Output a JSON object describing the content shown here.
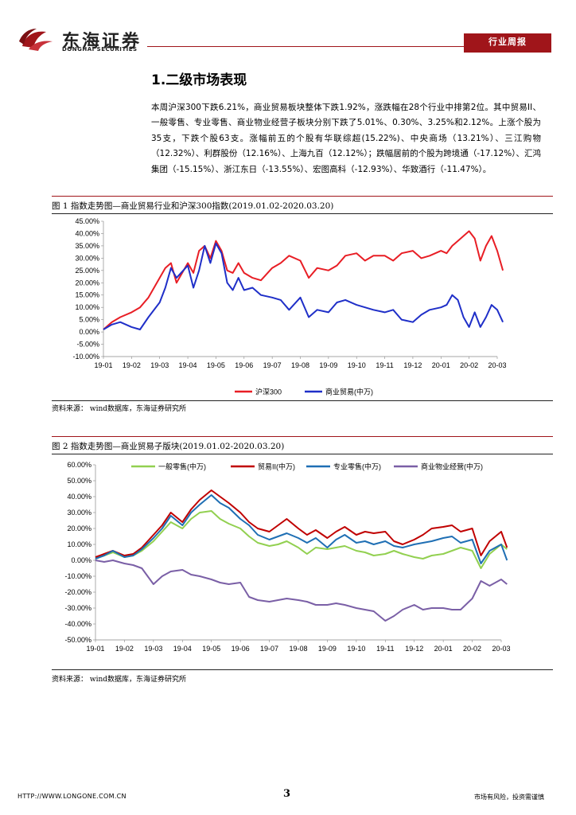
{
  "header": {
    "logo_cn": "东海证券",
    "logo_en": "DONGHAI SECURITIES",
    "tag": "行业周报"
  },
  "section_title": "1.二级市场表现",
  "paragraph": "本周沪深300下跌6.21%，商业贸易板块整体下跌1.92%，涨跌幅在28个行业中排第2位。其中贸易II、一般零售、专业零售、商业物业经营子板块分别下跌了5.01%、0.30%、3.25%和2.12%。上涨个股为35支，下跌个股63支。涨幅前五的个股有华联综超(15.22%)、中央商场（13.21%）、三江购物（12.32%）、利群股份（12.16%）、上海九百（12.12%）；跌幅居前的个股为跨境通（-17.12%）、汇鸿集团（-15.15%）、浙江东日（-13.55%）、宏图高科（-12.93%）、华致酒行（-11.47%）。",
  "fig1": {
    "title": "图 1    指数走势图—商业贸易行业和沪深300指数(2019.01.02-2020.03.20)",
    "source": "资料来源：    wind数据库，东海证券研究所"
  },
  "fig2": {
    "title": "图 2    指数走势图—商业贸易子版块(2019.01.02-2020.03.20)",
    "source": "资料来源：    wind数据库，东海证券研究所"
  },
  "footer": {
    "url": "HTTP://WWW.LONGONE.COM.CN",
    "page": "3",
    "risk": "市场有风险，投资需谨慎"
  },
  "colors": {
    "brand": "#a0151a",
    "hs300": "#e81e25",
    "trade": "#1f2fc8",
    "general_retail": "#92d050",
    "trade2": "#c00000",
    "specialty_retail": "#1f6fb4",
    "property": "#7a5fa6"
  },
  "chart_data": [
    {
      "type": "line",
      "title": "指数走势图—商业贸易行业和沪深300指数",
      "x_tick_labels": [
        "19-01",
        "19-02",
        "19-03",
        "19-04",
        "19-05",
        "19-06",
        "19-07",
        "19-08",
        "19-09",
        "19-10",
        "19-11",
        "19-12",
        "20-01",
        "20-02",
        "20-03"
      ],
      "y_tick_labels": [
        "45.00%",
        "40.00%",
        "35.00%",
        "30.00%",
        "25.00%",
        "20.00%",
        "15.00%",
        "10.00%",
        "5.00%",
        "0.00%",
        "-5.00%",
        "-10.00%"
      ],
      "ylim": [
        -10,
        45
      ],
      "x": [
        0,
        0.3,
        0.6,
        1,
        1.3,
        1.6,
        2,
        2.2,
        2.4,
        2.6,
        3,
        3.2,
        3.4,
        3.6,
        3.8,
        4,
        4.2,
        4.4,
        4.6,
        4.8,
        5,
        5.3,
        5.6,
        6,
        6.3,
        6.6,
        7,
        7.3,
        7.6,
        8,
        8.3,
        8.6,
        9,
        9.3,
        9.6,
        10,
        10.3,
        10.6,
        11,
        11.3,
        11.6,
        12,
        12.2,
        12.4,
        12.6,
        12.8,
        13,
        13.2,
        13.4,
        13.6,
        13.8,
        14,
        14.2
      ],
      "series": [
        {
          "name": "沪深300",
          "color": "#e81e25",
          "values": [
            1,
            4,
            6,
            8,
            10,
            14,
            22,
            26,
            28,
            20,
            28,
            24,
            33,
            35,
            30,
            37,
            33,
            25,
            24,
            28,
            24,
            22,
            21,
            26,
            28,
            31,
            29,
            22,
            26,
            25,
            27,
            31,
            32,
            29,
            31,
            31,
            29,
            32,
            33,
            30,
            31,
            33,
            32,
            35,
            37,
            39,
            41,
            38,
            29,
            35,
            39,
            33,
            25
          ]
        },
        {
          "name": "商业贸易(中万)",
          "color": "#1f2fc8",
          "values": [
            1,
            3,
            4,
            2,
            1,
            6,
            12,
            18,
            26,
            22,
            27,
            18,
            25,
            35,
            28,
            36,
            32,
            20,
            17,
            22,
            17,
            18,
            15,
            14,
            13,
            9,
            14,
            6,
            9,
            8,
            12,
            13,
            11,
            10,
            9,
            8,
            9,
            5,
            4,
            7,
            9,
            10,
            11,
            15,
            13,
            6,
            2,
            8,
            2,
            6,
            11,
            9,
            4
          ]
        }
      ]
    },
    {
      "type": "line",
      "title": "指数走势图—商业贸易子版块",
      "x_tick_labels": [
        "19-01",
        "19-02",
        "19-03",
        "19-04",
        "19-05",
        "19-06",
        "19-07",
        "19-08",
        "19-09",
        "19-10",
        "19-11",
        "19-12",
        "20-01",
        "20-02",
        "20-03"
      ],
      "y_tick_labels": [
        "60.00%",
        "50.00%",
        "40.00%",
        "30.00%",
        "20.00%",
        "10.00%",
        "0.00%",
        "-10.00%",
        "-20.00%",
        "-30.00%",
        "-40.00%",
        "-50.00%"
      ],
      "ylim": [
        -50,
        60
      ],
      "x": [
        0,
        0.3,
        0.6,
        1,
        1.3,
        1.6,
        2,
        2.3,
        2.6,
        3,
        3.3,
        3.6,
        4,
        4.3,
        4.6,
        5,
        5.3,
        5.6,
        6,
        6.3,
        6.6,
        7,
        7.3,
        7.6,
        8,
        8.3,
        8.6,
        9,
        9.3,
        9.6,
        10,
        10.3,
        10.6,
        11,
        11.3,
        11.6,
        12,
        12.3,
        12.6,
        13,
        13.3,
        13.6,
        14,
        14.2
      ],
      "series": [
        {
          "name": "一般零售(中万)",
          "color": "#92d050",
          "values": [
            1,
            3,
            5,
            2,
            3,
            6,
            12,
            18,
            24,
            20,
            26,
            30,
            31,
            26,
            23,
            20,
            15,
            11,
            9,
            10,
            12,
            8,
            4,
            8,
            7,
            8,
            9,
            6,
            5,
            3,
            4,
            6,
            4,
            2,
            1,
            3,
            4,
            6,
            8,
            6,
            -5,
            4,
            10,
            7
          ]
        },
        {
          "name": "贸易II(中万)",
          "color": "#c00000",
          "values": [
            2,
            4,
            6,
            3,
            4,
            8,
            16,
            22,
            30,
            24,
            32,
            38,
            44,
            40,
            36,
            30,
            24,
            20,
            18,
            22,
            26,
            20,
            16,
            19,
            14,
            18,
            21,
            16,
            18,
            17,
            18,
            12,
            10,
            13,
            16,
            20,
            21,
            22,
            18,
            20,
            3,
            12,
            18,
            8
          ]
        },
        {
          "name": "专业零售(中万)",
          "color": "#1f6fb4",
          "values": [
            1,
            3,
            6,
            2,
            3,
            7,
            14,
            20,
            28,
            22,
            30,
            35,
            41,
            36,
            33,
            26,
            22,
            16,
            13,
            15,
            17,
            14,
            11,
            14,
            8,
            13,
            16,
            11,
            12,
            10,
            12,
            9,
            8,
            10,
            11,
            12,
            14,
            15,
            11,
            13,
            -2,
            6,
            10,
            0
          ]
        },
        {
          "name": "商业物业经营(中万)",
          "color": "#7a5fa6",
          "values": [
            0,
            -1,
            0,
            -2,
            -3,
            -5,
            -15,
            -10,
            -7,
            -6,
            -9,
            -10,
            -12,
            -14,
            -15,
            -14,
            -23,
            -25,
            -26,
            -25,
            -24,
            -25,
            -26,
            -28,
            -28,
            -27,
            -28,
            -30,
            -31,
            -32,
            -38,
            -35,
            -31,
            -28,
            -31,
            -30,
            -30,
            -31,
            -31,
            -24,
            -13,
            -16,
            -12,
            -15
          ]
        }
      ]
    }
  ]
}
